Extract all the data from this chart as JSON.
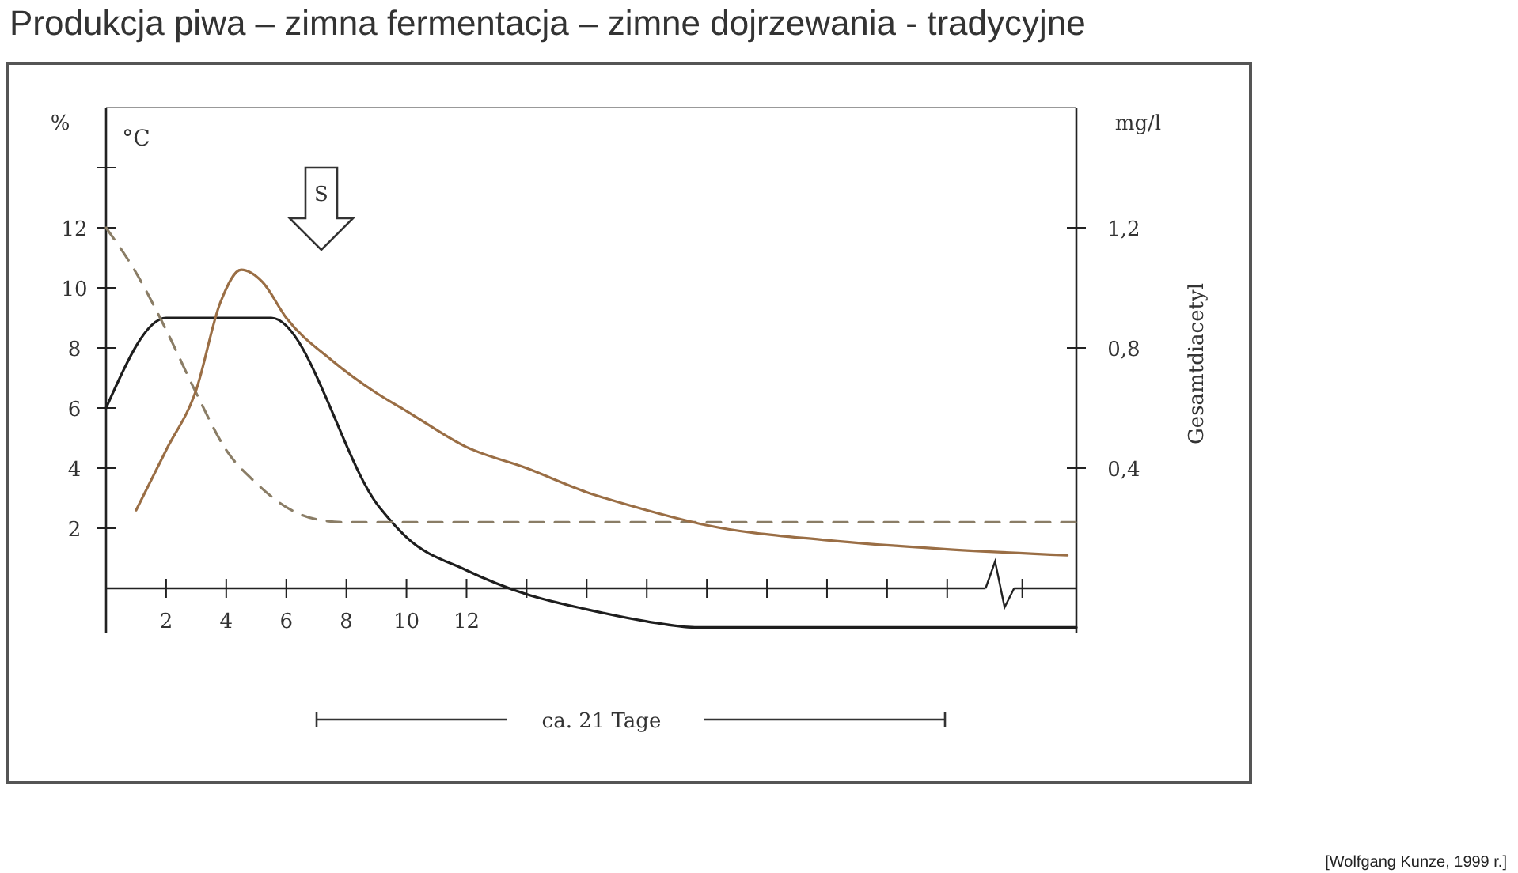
{
  "chart_data": {
    "type": "line",
    "title": "Produkcja piwa – zimna fermentacja – zimne dojrzewania - tradycyjne",
    "ylabel": "%",
    "y2label": "Gesamtdiacetyl",
    "annotations": [
      "°C",
      "mg/l",
      "S",
      "ca. 21 Tage",
      "[Wolfgang Kunze, 1999 r.]"
    ],
    "xlim": [
      0,
      32.3
    ],
    "xticks": [
      2,
      4,
      6,
      8,
      10,
      12,
      {
        "value": 14,
        "label": null
      },
      {
        "value": 16,
        "label": null
      },
      {
        "value": 18,
        "label": null
      },
      {
        "value": 20,
        "label": null
      },
      {
        "value": 22,
        "label": null
      },
      {
        "value": 24,
        "label": null
      },
      {
        "value": 26,
        "label": null
      },
      {
        "value": 28,
        "label": null
      },
      {
        "value": 30.5,
        "label": null
      }
    ],
    "ylim": [
      -1.5,
      16
    ],
    "yticks": [
      2,
      4,
      6,
      8,
      10,
      12,
      {
        "value": 14,
        "label": null
      }
    ],
    "y2lim": [
      -0.15,
      1.6
    ],
    "y2ticks": [
      {
        "value": 0.4,
        "label": "0,4"
      },
      {
        "value": 0.8,
        "label": "0,8"
      },
      {
        "value": 1.2,
        "label": "1,2"
      }
    ],
    "grid": false,
    "series": [
      {
        "color": "#1e1e1e",
        "x": [
          0,
          2,
          5.5,
          9.1,
          10,
          12,
          14,
          16,
          18,
          19.6,
          32.3
        ],
        "values": [
          6,
          9,
          9,
          2.7,
          1.7,
          0.6,
          -0.2,
          -0.7,
          -1.1,
          -1.3,
          -1.3
        ]
      },
      {
        "color": "#8a7d66",
        "line_style": "dashed",
        "x": [
          0,
          1,
          2,
          3,
          4,
          5,
          6,
          7,
          8,
          32.3
        ],
        "values": [
          12,
          10.5,
          8.6,
          6.5,
          4.6,
          3.5,
          2.7,
          2.3,
          2.2,
          2.2
        ]
      },
      {
        "color": "#9a6e45",
        "axis": "y2",
        "x": [
          1,
          2,
          3,
          3.8,
          4.5,
          5.2,
          6,
          7.5,
          9,
          10,
          12,
          14,
          16,
          18,
          20,
          24,
          28,
          32
        ],
        "values": [
          0.26,
          0.46,
          0.66,
          0.95,
          1.06,
          1.02,
          0.9,
          0.76,
          0.65,
          0.59,
          0.47,
          0.4,
          0.32,
          0.26,
          0.21,
          0.16,
          0.13,
          0.11
        ]
      }
    ]
  }
}
